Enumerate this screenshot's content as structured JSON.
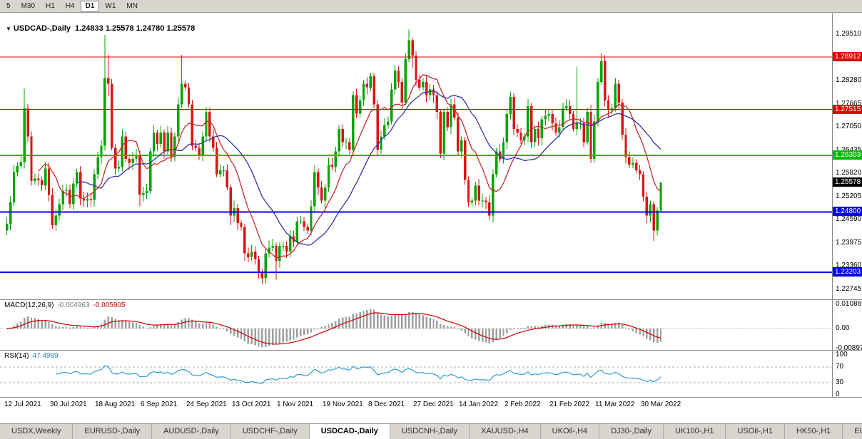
{
  "toolbar": {
    "timeframes": [
      "5",
      "M30",
      "H1",
      "H4",
      "D1",
      "W1",
      "MN"
    ],
    "active": "D1"
  },
  "chart": {
    "title_icon": "▼",
    "title": "USDCAD-,Daily",
    "ohlc": "1.24833 1.25578 1.24780 1.25578"
  },
  "macd": {
    "name": "MACD(12,26,9)",
    "value1": "-0.004963",
    "value2": "-0.005905"
  },
  "rsi": {
    "name": "RSI(14)",
    "value": "47.4989"
  },
  "tabs": {
    "items": [
      "USDX,Weekly",
      "EURUSD-,Daily",
      "AUDUSD-,Daily",
      "USDCHF-,Daily",
      "USDCAD-,Daily",
      "USDCNH-,Daily",
      "XAUUSD-,H4",
      "UKOil-,H4",
      "DJ30-,Daily",
      "UK100-,H1",
      "USOil-,H1",
      "HK50-,H1",
      "EU"
    ],
    "active": "USDCAD-,Daily"
  },
  "chart_data": {
    "type": "candlestick",
    "symbol": "USDCAD-",
    "timeframe": "Daily",
    "up_color": "#00a400",
    "down_color": "#dc1414",
    "price_range": [
      1.2248,
      1.3008
    ],
    "price_axis_ticks": [
      "1.29510",
      "1.28280",
      "1.27665",
      "1.27050",
      "1.26435",
      "1.25820",
      "1.25205",
      "1.24590",
      "1.23975",
      "1.23360",
      "1.22745"
    ],
    "x_labels": [
      "12 Jul 2021",
      "30 Jul 2021",
      "18 Aug 2021",
      "6 Sep 2021",
      "24 Sep 2021",
      "13 Oct 2021",
      "1 Nov 2021",
      "19 Nov 2021",
      "8 Dec 2021",
      "27 Dec 2021",
      "14 Jan 2022",
      "2 Feb 2022",
      "21 Feb 2022",
      "11 Mar 2022",
      "30 Mar 2022"
    ],
    "x_label_step": 13,
    "h_lines": [
      {
        "value": 1.28912,
        "label": "1.28912",
        "color": "#dd0000",
        "width": 1
      },
      {
        "value": 1.27515,
        "label": "1.27515",
        "color": "#dd0000",
        "width": 1
      },
      {
        "value": 1.26303,
        "label": "1.26303",
        "color": "#00bb00",
        "width": 2
      },
      {
        "value": 1.248,
        "label": "1.24800",
        "color": "#0000ee",
        "width": 2
      },
      {
        "value": 1.23203,
        "label": "1.23203",
        "color": "#0000ee",
        "width": 2
      }
    ],
    "current_price": {
      "value": 1.25578,
      "label": "1.25578",
      "bg": "#000000"
    },
    "moving_averages": [
      {
        "period": 10,
        "color": "#c42b2b",
        "name": "ma-fast"
      },
      {
        "period": 21,
        "color": "#3333aa",
        "name": "ma-slow"
      }
    ],
    "first_open": 1.243,
    "closes": [
      1.2448,
      1.2505,
      1.2585,
      1.2602,
      1.2612,
      1.2755,
      1.268,
      1.2562,
      1.2568,
      1.2565,
      1.255,
      1.2595,
      1.2525,
      1.2445,
      1.247,
      1.25,
      1.2535,
      1.2538,
      1.25,
      1.2555,
      1.2585,
      1.2515,
      1.251,
      1.2515,
      1.2512,
      1.258,
      1.2625,
      1.2655,
      1.2835,
      1.282,
      1.265,
      1.2595,
      1.26,
      1.268,
      1.262,
      1.261,
      1.262,
      1.263,
      1.2525,
      1.253,
      1.2535,
      1.264,
      1.269,
      1.266,
      1.269,
      1.264,
      1.269,
      1.2625,
      1.268,
      1.2765,
      1.282,
      1.281,
      1.2765,
      1.2655,
      1.265,
      1.263,
      1.268,
      1.2745,
      1.268,
      1.265,
      1.258,
      1.259,
      1.259,
      1.2545,
      1.247,
      1.249,
      1.245,
      1.244,
      1.237,
      1.236,
      1.2375,
      1.2355,
      1.232,
      1.2305,
      1.237,
      1.2385,
      1.239,
      1.235,
      1.239,
      1.239,
      1.2375,
      1.2415,
      1.24,
      1.2455,
      1.2455,
      1.244,
      1.243,
      1.2495,
      1.2585,
      1.2545,
      1.251,
      1.2545,
      1.2605,
      1.26,
      1.264,
      1.27,
      1.2665,
      1.2665,
      1.2645,
      1.279,
      1.274,
      1.2775,
      1.282,
      1.281,
      1.284,
      1.2765,
      1.2645,
      1.268,
      1.271,
      1.272,
      1.2805,
      1.2855,
      1.2825,
      1.277,
      1.2885,
      1.2935,
      1.2895,
      1.283,
      1.281,
      1.2825,
      1.279,
      1.2805,
      1.279,
      1.2745,
      1.2635,
      1.2745,
      1.2705,
      1.2765,
      1.273,
      1.264,
      1.267,
      1.2565,
      1.2505,
      1.251,
      1.255,
      1.251,
      1.251,
      1.2505,
      1.247,
      1.258,
      1.264,
      1.262,
      1.2665,
      1.274,
      1.2785,
      1.27,
      1.269,
      1.267,
      1.268,
      1.276,
      1.2665,
      1.27,
      1.2675,
      1.2725,
      1.2735,
      1.274,
      1.2715,
      1.269,
      1.2705,
      1.2755,
      1.276,
      1.274,
      1.27,
      1.2715,
      1.2715,
      1.2665,
      1.2745,
      1.262,
      1.272,
      1.2825,
      1.288,
      1.2775,
      1.275,
      1.2755,
      1.282,
      1.277,
      1.2685,
      1.2625,
      1.2605,
      1.261,
      1.259,
      1.258,
      1.252,
      1.247,
      1.25,
      1.243,
      1.2483,
      1.25578
    ],
    "open_overrides": {
      "187": 1.24833
    },
    "wick_overrides": {
      "5": [
        1.2807,
        1.2595
      ],
      "28": [
        1.2949,
        1.2643
      ],
      "29": [
        1.2897,
        1.2788
      ],
      "38": [
        1.2642,
        1.2495
      ],
      "50": [
        1.2896,
        1.2757
      ],
      "64": [
        1.2552,
        1.2445
      ],
      "73": [
        1.2328,
        1.2288
      ],
      "77": [
        1.2398,
        1.23
      ],
      "99": [
        1.28,
        1.2638
      ],
      "114": [
        1.29,
        1.2763
      ],
      "115": [
        1.2964,
        1.2878
      ],
      "116": [
        1.2942,
        1.2862
      ],
      "124": [
        1.2752,
        1.2622
      ],
      "163": [
        1.2865,
        1.2683
      ],
      "170": [
        1.2901,
        1.2818
      ],
      "185": [
        1.2508,
        1.2403
      ],
      "187": [
        1.25578,
        1.2478
      ]
    },
    "macd": {
      "fast": 12,
      "slow": 26,
      "signal": 9,
      "histogram_color": "#9e9e9e",
      "signal_color": "#cc0000",
      "axis_labels": [
        "0.010869",
        "0.00",
        "-0.008974"
      ]
    },
    "rsi": {
      "period": 14,
      "color": "#2e9bd6",
      "levels": [
        70,
        30
      ],
      "axis_labels": [
        "100",
        "70",
        "30",
        "0"
      ]
    }
  }
}
